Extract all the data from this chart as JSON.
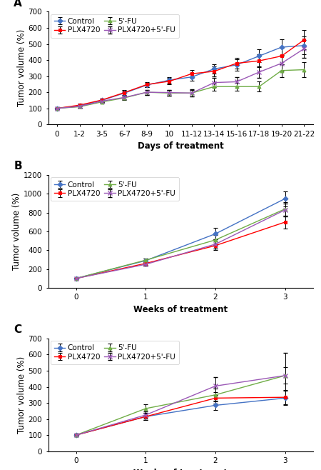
{
  "panel_A": {
    "title": "A",
    "xlabel": "Days of treatment",
    "ylabel": "Tumor volume (%)",
    "xlabels": [
      "0",
      "1-2",
      "3-5",
      "6-7",
      "8-9",
      "10",
      "11-12",
      "13-14",
      "15-16",
      "17-18",
      "19-20",
      "21-22"
    ],
    "ylim": [
      0,
      700
    ],
    "yticks": [
      0,
      100,
      200,
      300,
      400,
      500,
      600,
      700
    ],
    "series": {
      "Control": {
        "color": "#4472C4",
        "marker": "D",
        "values": [
          100,
          115,
          150,
          195,
          245,
          275,
          295,
          345,
          370,
          425,
          480,
          490
        ],
        "yerr": [
          5,
          10,
          10,
          15,
          15,
          20,
          25,
          30,
          35,
          40,
          50,
          55
        ]
      },
      "PLX4720": {
        "color": "#FF0000",
        "marker": "s",
        "values": [
          100,
          120,
          152,
          198,
          248,
          268,
          315,
          330,
          380,
          395,
          425,
          525
        ],
        "yerr": [
          5,
          10,
          10,
          15,
          15,
          20,
          25,
          30,
          35,
          40,
          50,
          60
        ]
      },
      "5'-FU": {
        "color": "#70AD47",
        "marker": "^",
        "values": [
          100,
          110,
          140,
          165,
          200,
          195,
          195,
          235,
          235,
          235,
          335,
          340
        ],
        "yerr": [
          5,
          8,
          8,
          12,
          15,
          18,
          20,
          25,
          25,
          30,
          40,
          45
        ]
      },
      "PLX4720+5'-FU": {
        "color": "#9B59B6",
        "marker": "x",
        "values": [
          100,
          112,
          145,
          168,
          200,
          198,
          195,
          260,
          265,
          325,
          380,
          470
        ],
        "yerr": [
          5,
          8,
          8,
          12,
          15,
          18,
          22,
          28,
          30,
          35,
          45,
          55
        ]
      }
    }
  },
  "panel_B": {
    "title": "B",
    "xlabel": "Weeks of treatment",
    "ylabel": "Tumor volume (%)",
    "xlabels": [
      "0",
      "1",
      "2",
      "3"
    ],
    "ylim": [
      0,
      1200
    ],
    "yticks": [
      0,
      200,
      400,
      600,
      800,
      1000,
      1200
    ],
    "series": {
      "Control": {
        "color": "#4472C4",
        "marker": "D",
        "values": [
          100,
          290,
          575,
          950
        ],
        "yerr": [
          5,
          20,
          60,
          80
        ]
      },
      "PLX4720": {
        "color": "#FF0000",
        "marker": "s",
        "values": [
          100,
          260,
          450,
          700
        ],
        "yerr": [
          5,
          18,
          50,
          70
        ]
      },
      "5'-FU": {
        "color": "#70AD47",
        "marker": "^",
        "values": [
          100,
          295,
          510,
          840
        ],
        "yerr": [
          5,
          20,
          55,
          75
        ]
      },
      "PLX4720+5'-FU": {
        "color": "#9B59B6",
        "marker": "x",
        "values": [
          100,
          250,
          465,
          830
        ],
        "yerr": [
          5,
          18,
          50,
          70
        ]
      }
    }
  },
  "panel_C": {
    "title": "C",
    "xlabel": "Weeks of treatment",
    "ylabel": "Tumor volume (%)",
    "xlabels": [
      "0",
      "1",
      "2",
      "3"
    ],
    "ylim": [
      0,
      700
    ],
    "yticks": [
      0,
      100,
      200,
      300,
      400,
      500,
      600,
      700
    ],
    "series": {
      "Control": {
        "color": "#4472C4",
        "marker": "D",
        "values": [
          100,
          215,
          285,
          330
        ],
        "yerr": [
          5,
          20,
          30,
          45
        ]
      },
      "PLX4720": {
        "color": "#FF0000",
        "marker": "s",
        "values": [
          100,
          215,
          330,
          335
        ],
        "yerr": [
          5,
          20,
          35,
          45
        ]
      },
      "5'-FU": {
        "color": "#70AD47",
        "marker": "^",
        "values": [
          100,
          265,
          350,
          470
        ],
        "yerr": [
          5,
          25,
          40,
          50
        ]
      },
      "PLX4720+5'-FU": {
        "color": "#9B59B6",
        "marker": "x",
        "values": [
          100,
          225,
          405,
          470
        ],
        "yerr": [
          5,
          22,
          55,
          140
        ]
      }
    }
  },
  "legend_order": [
    "Control",
    "PLX4720",
    "5'-FU",
    "PLX4720+5'-FU"
  ],
  "font_size": 7.5,
  "label_font_size": 8.5,
  "title_font_size": 11
}
